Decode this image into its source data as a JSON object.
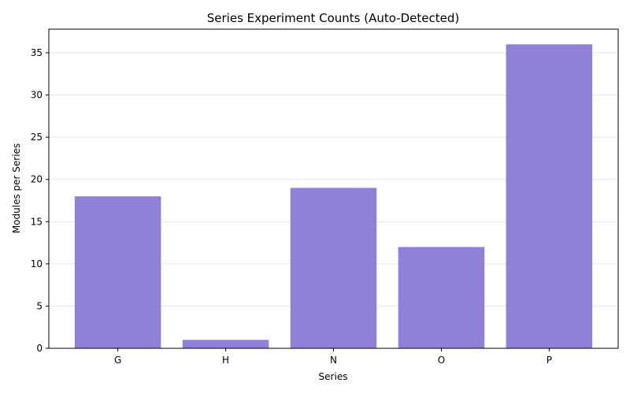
{
  "chart_data": {
    "type": "bar",
    "title": "Series Experiment Counts (Auto-Detected)",
    "xlabel": "Series",
    "ylabel": "Modules per Series",
    "categories": [
      "G",
      "H",
      "N",
      "O",
      "P"
    ],
    "values": [
      18,
      1,
      19,
      12,
      36
    ],
    "ylim": [
      0,
      37.8
    ],
    "yticks": [
      0,
      5,
      10,
      15,
      20,
      25,
      30,
      35
    ],
    "grid": true,
    "bar_color": "#9080d8"
  }
}
